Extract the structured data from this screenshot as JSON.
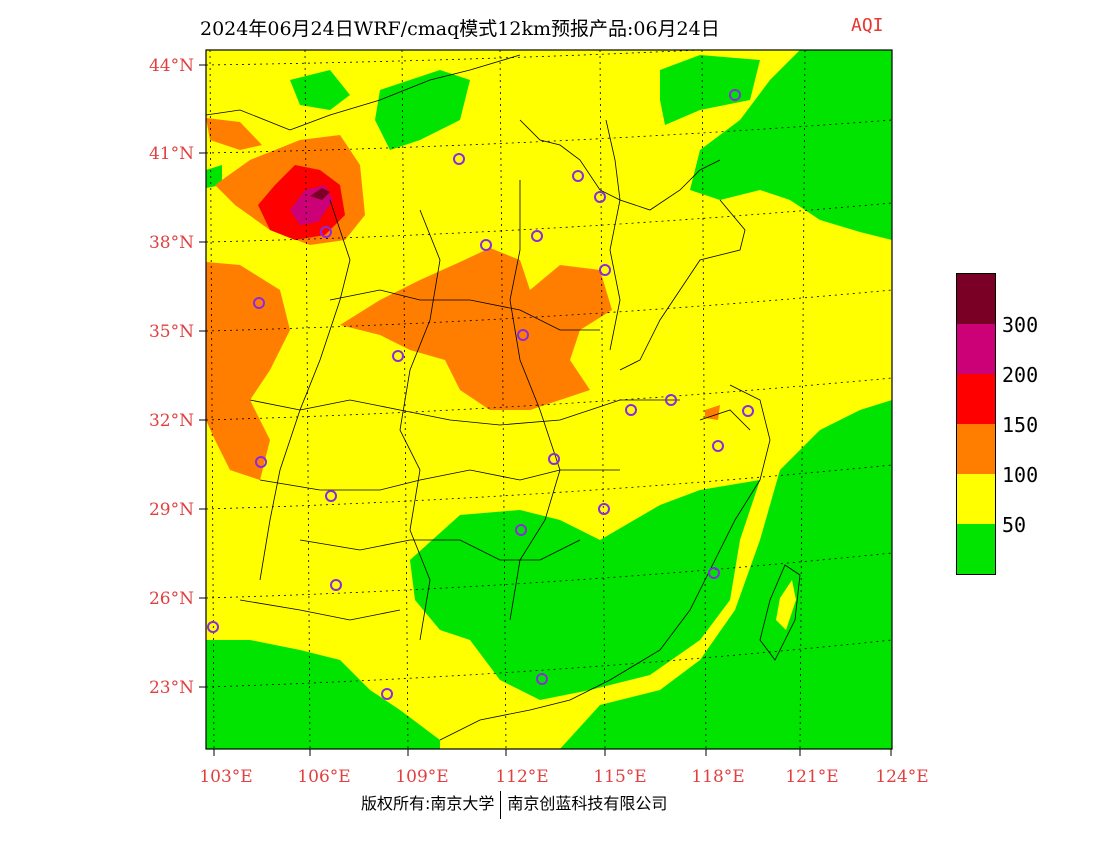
{
  "title": "2024年06月24日WRF/cmaq模式12km预报产品:06月24日",
  "aqi_tag": "AQI",
  "lat_labels": [
    "44°N",
    "41°N",
    "38°N",
    "35°N",
    "32°N",
    "29°N",
    "26°N",
    "23°N"
  ],
  "lon_labels": [
    "103°E",
    "106°E",
    "109°E",
    "112°E",
    "115°E",
    "118°E",
    "121°E",
    "124°E"
  ],
  "legend": {
    "levels": [
      "300",
      "200",
      "150",
      "100",
      "50"
    ],
    "colors": {
      "hazardous": "#7a0026",
      "very_unhealthy": "#cc0077",
      "unhealthy": "#ff0000",
      "sensitive": "#ff7e00",
      "moderate": "#ffff00",
      "good": "#00e400"
    }
  },
  "footer": {
    "left": "版权所有:南京大学",
    "right": "南京创蓝科技有限公司"
  }
}
